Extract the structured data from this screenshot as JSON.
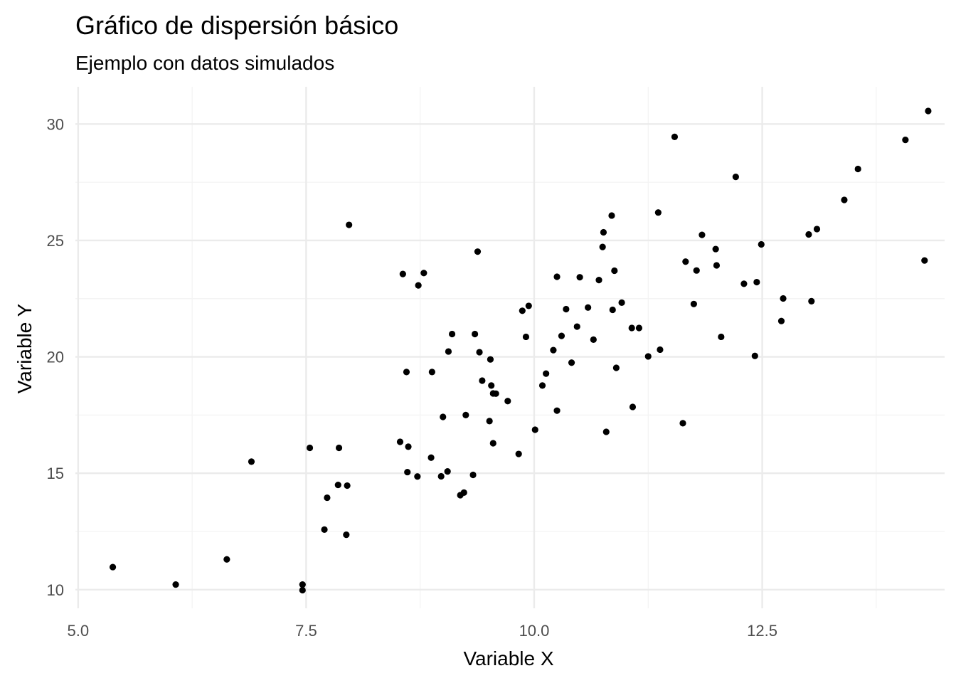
{
  "chart_data": {
    "type": "scatter",
    "title": "Gráfico de dispersión básico",
    "subtitle": "Ejemplo con datos simulados",
    "xlabel": "Variable X",
    "ylabel": "Variable Y",
    "xlim": [
      4.97,
      14.5
    ],
    "ylim": [
      9.2,
      31.6
    ],
    "x_ticks": [
      5.0,
      7.5,
      10.0,
      12.5
    ],
    "x_tick_labels": [
      "5.0",
      "7.5",
      "10.0",
      "12.5"
    ],
    "x_minor_ticks": [
      6.25,
      8.75,
      11.25,
      13.75
    ],
    "y_ticks": [
      10,
      15,
      20,
      25,
      30
    ],
    "y_tick_labels": [
      "10",
      "15",
      "20",
      "25",
      "30"
    ],
    "y_minor_ticks": [
      12.5,
      17.5,
      22.5,
      27.5
    ],
    "grid": true,
    "legend": "none",
    "point_color": "#000000",
    "series": [
      {
        "points": [
          [
            5.38,
            10.97
          ],
          [
            6.07,
            10.22
          ],
          [
            6.63,
            11.3
          ],
          [
            6.9,
            15.5
          ],
          [
            7.46,
            10.22
          ],
          [
            7.46,
            9.98
          ],
          [
            7.54,
            16.09
          ],
          [
            7.7,
            12.58
          ],
          [
            7.73,
            13.95
          ],
          [
            7.85,
            14.5
          ],
          [
            7.86,
            16.09
          ],
          [
            7.94,
            12.36
          ],
          [
            7.95,
            14.47
          ],
          [
            7.97,
            25.67
          ],
          [
            8.53,
            16.35
          ],
          [
            8.56,
            23.56
          ],
          [
            8.6,
            19.35
          ],
          [
            8.61,
            15.05
          ],
          [
            8.62,
            16.14
          ],
          [
            8.72,
            14.86
          ],
          [
            8.73,
            23.07
          ],
          [
            8.79,
            23.6
          ],
          [
            8.87,
            15.67
          ],
          [
            8.88,
            19.35
          ],
          [
            8.98,
            14.87
          ],
          [
            9.0,
            17.42
          ],
          [
            9.05,
            15.08
          ],
          [
            9.06,
            20.23
          ],
          [
            9.1,
            20.98
          ],
          [
            9.19,
            14.06
          ],
          [
            9.23,
            14.17
          ],
          [
            9.25,
            17.5
          ],
          [
            9.33,
            14.93
          ],
          [
            9.35,
            20.98
          ],
          [
            9.38,
            24.52
          ],
          [
            9.4,
            20.2
          ],
          [
            9.43,
            18.98
          ],
          [
            9.51,
            17.24
          ],
          [
            9.52,
            19.89
          ],
          [
            9.53,
            18.77
          ],
          [
            9.55,
            18.43
          ],
          [
            9.55,
            16.29
          ],
          [
            9.58,
            18.42
          ],
          [
            9.71,
            18.1
          ],
          [
            9.83,
            15.83
          ],
          [
            9.87,
            21.98
          ],
          [
            9.91,
            20.86
          ],
          [
            9.94,
            22.19
          ],
          [
            10.01,
            16.87
          ],
          [
            10.09,
            18.77
          ],
          [
            10.13,
            19.28
          ],
          [
            10.21,
            20.29
          ],
          [
            10.25,
            23.44
          ],
          [
            10.25,
            17.69
          ],
          [
            10.3,
            20.9
          ],
          [
            10.35,
            22.05
          ],
          [
            10.41,
            19.75
          ],
          [
            10.47,
            21.3
          ],
          [
            10.5,
            23.42
          ],
          [
            10.59,
            22.12
          ],
          [
            10.65,
            20.74
          ],
          [
            10.71,
            23.3
          ],
          [
            10.75,
            24.72
          ],
          [
            10.76,
            25.35
          ],
          [
            10.79,
            16.78
          ],
          [
            10.85,
            26.07
          ],
          [
            10.86,
            22.02
          ],
          [
            10.88,
            23.7
          ],
          [
            10.9,
            19.53
          ],
          [
            10.96,
            22.33
          ],
          [
            11.07,
            21.24
          ],
          [
            11.08,
            17.85
          ],
          [
            11.15,
            21.24
          ],
          [
            11.25,
            20.02
          ],
          [
            11.36,
            26.2
          ],
          [
            11.38,
            20.31
          ],
          [
            11.54,
            29.45
          ],
          [
            11.63,
            17.15
          ],
          [
            11.66,
            24.09
          ],
          [
            11.75,
            22.27
          ],
          [
            11.78,
            23.71
          ],
          [
            11.84,
            25.24
          ],
          [
            11.99,
            24.63
          ],
          [
            12.0,
            23.93
          ],
          [
            12.05,
            20.86
          ],
          [
            12.21,
            27.73
          ],
          [
            12.3,
            23.14
          ],
          [
            12.42,
            20.04
          ],
          [
            12.44,
            23.21
          ],
          [
            12.49,
            24.83
          ],
          [
            12.71,
            21.54
          ],
          [
            12.73,
            22.51
          ],
          [
            13.01,
            25.26
          ],
          [
            13.04,
            22.39
          ],
          [
            13.1,
            25.49
          ],
          [
            13.4,
            26.74
          ],
          [
            13.55,
            28.07
          ],
          [
            14.07,
            29.32
          ],
          [
            14.28,
            24.14
          ],
          [
            14.32,
            30.56
          ]
        ]
      }
    ]
  }
}
